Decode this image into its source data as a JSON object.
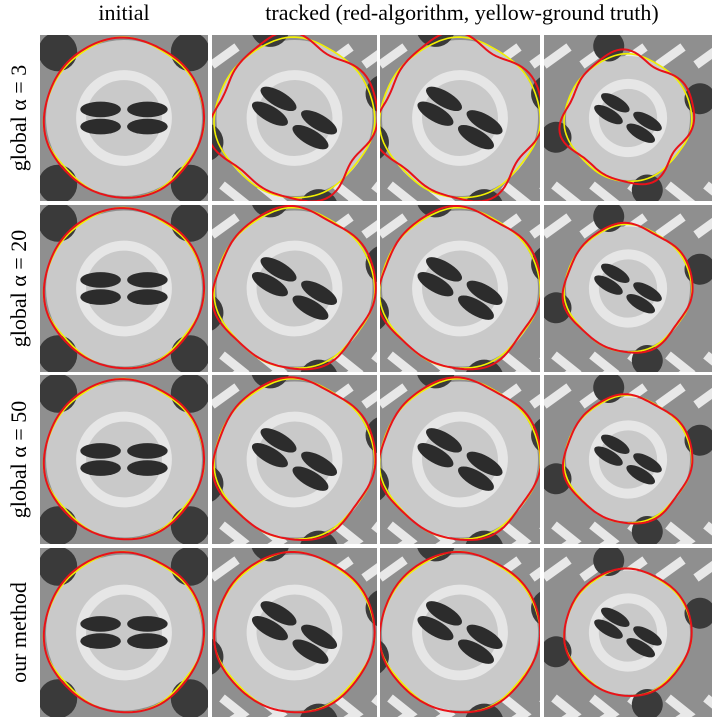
{
  "header": {
    "columns": [
      "initial",
      "tracked (red-algorithm, yellow-ground truth)"
    ]
  },
  "rows": [
    {
      "label": "global α = 3"
    },
    {
      "label": "global α = 20"
    },
    {
      "label": "global α = 50"
    },
    {
      "label": "our method"
    }
  ]
}
